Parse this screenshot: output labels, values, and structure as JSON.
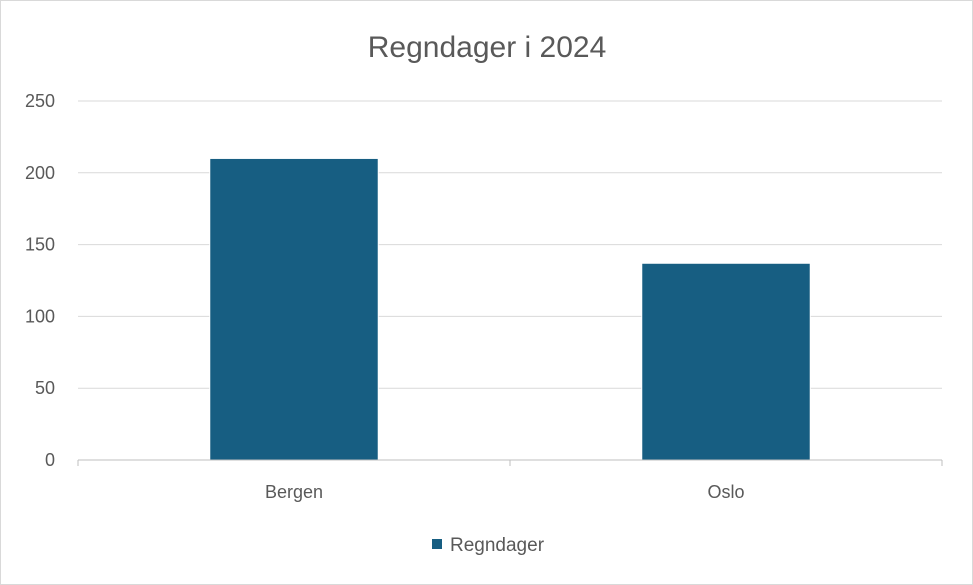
{
  "chart_data": {
    "type": "bar",
    "title": "Regndager i 2024",
    "categories": [
      "Bergen",
      "Oslo"
    ],
    "series": [
      {
        "name": "Regndager",
        "values": [
          210,
          137
        ],
        "color": "#175e82"
      }
    ],
    "ylim": [
      0,
      250
    ],
    "yticks": [
      0,
      50,
      100,
      150,
      200,
      250
    ],
    "grid": true,
    "legend": "bottom"
  }
}
